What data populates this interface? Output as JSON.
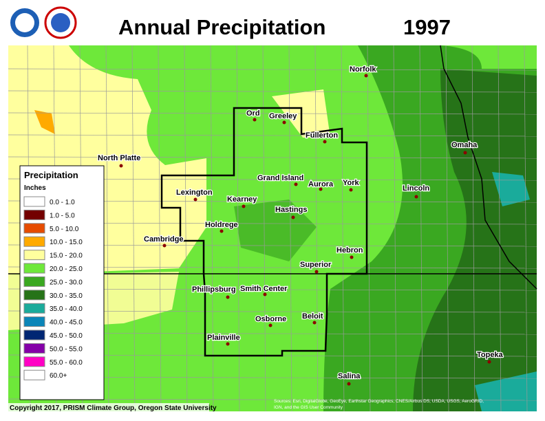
{
  "header": {
    "title": "Annual Precipitation",
    "year": "1997"
  },
  "legend": {
    "title": "Precipitation",
    "units": "Inches",
    "entries": [
      {
        "label": "0.0 - 1.0",
        "color": "#ffffff"
      },
      {
        "label": "1.0 - 5.0",
        "color": "#730000"
      },
      {
        "label": "5.0 - 10.0",
        "color": "#e64c00"
      },
      {
        "label": "10.0 - 15.0",
        "color": "#ffaa00"
      },
      {
        "label": "15.0 - 20.0",
        "color": "#ffff9e"
      },
      {
        "label": "20.0 - 25.0",
        "color": "#6ee83a"
      },
      {
        "label": "25.0 - 30.0",
        "color": "#3aa821"
      },
      {
        "label": "30.0 - 35.0",
        "color": "#267318"
      },
      {
        "label": "35.0 - 40.0",
        "color": "#1aab9b"
      },
      {
        "label": "40.0 - 45.0",
        "color": "#0a85b8"
      },
      {
        "label": "45.0 - 50.0",
        "color": "#002673"
      },
      {
        "label": "50.0 - 55.0",
        "color": "#8400a8"
      },
      {
        "label": "55.0 - 60.0",
        "color": "#ff00c5"
      },
      {
        "label": "60.0+",
        "color": "#ffffff"
      }
    ]
  },
  "cities": [
    "Ord",
    "Greeley",
    "Norfolk",
    "Fullerton",
    "North Platte",
    "Omaha",
    "Grand Island",
    "Aurora",
    "York",
    "Lincoln",
    "Lexington",
    "Kearney",
    "Hastings",
    "Holdrege",
    "Cambridge",
    "Hebron",
    "Superior",
    "Phillipsburg",
    "Smith Center",
    "Beloit",
    "Osborne",
    "Plainville",
    "Topeka",
    "Salina"
  ],
  "credits": {
    "copyright": "Copyright 2017, PRISM Climate Group, Oregon State University",
    "sources": [
      "Sources: Esri, DigitalGlobe, GeoEye, Earthstar Geographics, CNES/Airbus DS, USDA, USGS, AeroGRID,",
      "IGN, and the GIS User Community"
    ]
  }
}
